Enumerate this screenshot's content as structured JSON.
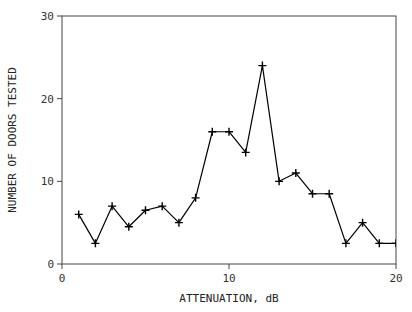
{
  "chart_data": {
    "type": "line",
    "x": [
      1,
      2,
      3,
      4,
      5,
      6,
      7,
      8,
      9,
      10,
      11,
      12,
      13,
      14,
      15,
      16,
      17,
      18,
      19,
      20
    ],
    "values": [
      6,
      2.5,
      7,
      4.5,
      6.5,
      7,
      5,
      8,
      16,
      16,
      13.5,
      24,
      10,
      11,
      8.5,
      8.5,
      2.5,
      5,
      2.5,
      2.5
    ],
    "xlabel": "ATTENUATION, dB",
    "ylabel": "NUMBER OF DOORS TESTED",
    "xlim": [
      0,
      20
    ],
    "ylim": [
      0,
      30
    ],
    "xticks": [
      0,
      10,
      20
    ],
    "yticks": [
      0,
      10,
      20,
      30
    ],
    "color": "#000000",
    "marker": "plus",
    "grid": false
  }
}
